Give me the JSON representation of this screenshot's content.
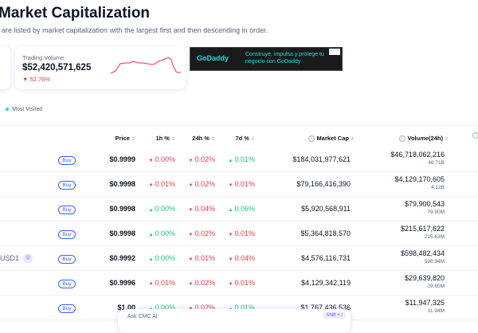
{
  "header": {
    "title": "Market Capitalization",
    "subtitle": "are listed by market capitalization with the largest first and then descending in order."
  },
  "trading_volume": {
    "label": "Trading Volume",
    "value": "$52,420,571,625",
    "change": "52.76%",
    "direction": "down"
  },
  "ad": {
    "brand": "GoDaddy",
    "text_line1": "Construye, impulsa y protege tu",
    "text_line2": "negocio con GoDaddy",
    "info": "ⓘ ⋮"
  },
  "filters": {
    "most_visited": "Most Visited"
  },
  "table": {
    "columns": {
      "price": "Price",
      "h1": "1h %",
      "h24": "24h %",
      "d7": "7d %",
      "market_cap": "Market Cap",
      "volume": "Volume(24h)"
    },
    "buy_label": "Buy",
    "rows": [
      {
        "name": "",
        "price": "$0.9999",
        "h1": "0.00%",
        "h1_dir": "dn",
        "h24": "0.02%",
        "h24_dir": "dn",
        "d7": "0.01%",
        "d7_dir": "up",
        "market_cap": "$184,031,977,621",
        "volume": "$46,718,062,216",
        "volume_short": "46.71B"
      },
      {
        "name": "",
        "price": "$0.9998",
        "h1": "0.01%",
        "h1_dir": "dn",
        "h24": "0.02%",
        "h24_dir": "dn",
        "d7": "0.01%",
        "d7_dir": "dn",
        "market_cap": "$79,166,416,390",
        "volume": "$4,129,170,605",
        "volume_short": "4.12B"
      },
      {
        "name": "",
        "price": "$0.9998",
        "h1": "0.00%",
        "h1_dir": "up",
        "h24": "0.04%",
        "h24_dir": "dn",
        "d7": "0.06%",
        "d7_dir": "up",
        "market_cap": "$5,920,568,911",
        "volume": "$79,900,543",
        "volume_short": "79.90M"
      },
      {
        "name": "",
        "price": "$0.9998",
        "h1": "0.00%",
        "h1_dir": "up",
        "h24": "0.02%",
        "h24_dir": "dn",
        "d7": "0.01%",
        "d7_dir": "dn",
        "market_cap": "$5,364,818,570",
        "volume": "$215,617,622",
        "volume_short": "215.63M"
      },
      {
        "name": "USD1",
        "price": "$0.9992",
        "h1": "0.00%",
        "h1_dir": "up",
        "h24": "0.01%",
        "h24_dir": "dn",
        "d7": "0.04%",
        "d7_dir": "dn",
        "market_cap": "$4,576,116,731",
        "volume": "$598,482,434",
        "volume_short": "598.94M"
      },
      {
        "name": "",
        "price": "$0.9996",
        "h1": "0.01%",
        "h1_dir": "dn",
        "h24": "0.02%",
        "h24_dir": "dn",
        "d7": "0.01%",
        "d7_dir": "dn",
        "market_cap": "$4,129,342,119",
        "volume": "$29,639,820",
        "volume_short": "29.65M"
      },
      {
        "name": "",
        "price": "$1.00",
        "h1": "0.00%",
        "h1_dir": "up",
        "h24": "0.02%",
        "h24_dir": "dn",
        "d7": "0.01%",
        "d7_dir": "up",
        "market_cap": "$1,767,436,536",
        "volume": "$11,947,325",
        "volume_short": "11.94M"
      }
    ]
  },
  "ask_ai": {
    "label": "Ask CMC AI",
    "shortcut": "Shift + /"
  },
  "colors": {
    "up": "#16c784",
    "down": "#ea3943",
    "accent": "#3861fb"
  }
}
